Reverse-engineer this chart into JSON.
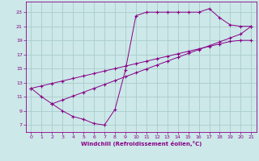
{
  "xlabel": "Windchill (Refroidissement éolien,°C)",
  "bg_color": "#cce8e8",
  "grid_color": "#aacccc",
  "line_color": "#880088",
  "xlim": [
    -0.5,
    21.5
  ],
  "ylim": [
    6.0,
    24.5
  ],
  "xticks": [
    0,
    1,
    2,
    3,
    4,
    5,
    6,
    7,
    8,
    9,
    10,
    11,
    12,
    13,
    14,
    15,
    16,
    17,
    18,
    19,
    20,
    21
  ],
  "yticks": [
    7,
    9,
    11,
    13,
    15,
    17,
    19,
    21,
    23
  ],
  "line1_x": [
    0,
    1,
    2,
    3,
    4,
    5,
    6,
    7,
    8,
    9,
    10,
    11,
    12,
    13,
    14,
    15,
    16,
    17,
    18,
    19,
    20,
    21
  ],
  "line1_y": [
    12.2,
    11.0,
    10.0,
    9.0,
    8.2,
    7.8,
    7.2,
    7.0,
    9.2,
    14.8,
    22.5,
    23.0,
    23.0,
    23.0,
    23.0,
    23.0,
    23.0,
    23.5,
    22.2,
    21.2,
    21.0,
    21.0
  ],
  "line2_x": [
    0,
    1,
    2,
    3,
    4,
    5,
    6,
    7,
    8,
    9,
    10,
    11,
    12,
    13,
    14,
    15,
    16,
    17,
    18,
    19,
    20,
    21
  ],
  "line2_y": [
    12.2,
    12.55,
    12.9,
    13.25,
    13.6,
    13.95,
    14.3,
    14.65,
    15.0,
    15.35,
    15.7,
    16.05,
    16.4,
    16.75,
    17.1,
    17.45,
    17.8,
    18.15,
    18.5,
    18.85,
    19.0,
    19.0
  ],
  "line3_x": [
    2,
    3,
    4,
    5,
    6,
    7,
    8,
    9,
    10,
    11,
    12,
    13,
    14,
    15,
    16,
    17,
    18,
    19,
    20,
    21
  ],
  "line3_y": [
    10.0,
    10.55,
    11.1,
    11.65,
    12.2,
    12.75,
    13.3,
    13.85,
    14.4,
    14.95,
    15.5,
    16.05,
    16.6,
    17.15,
    17.7,
    18.25,
    18.8,
    19.35,
    19.9,
    21.0
  ]
}
